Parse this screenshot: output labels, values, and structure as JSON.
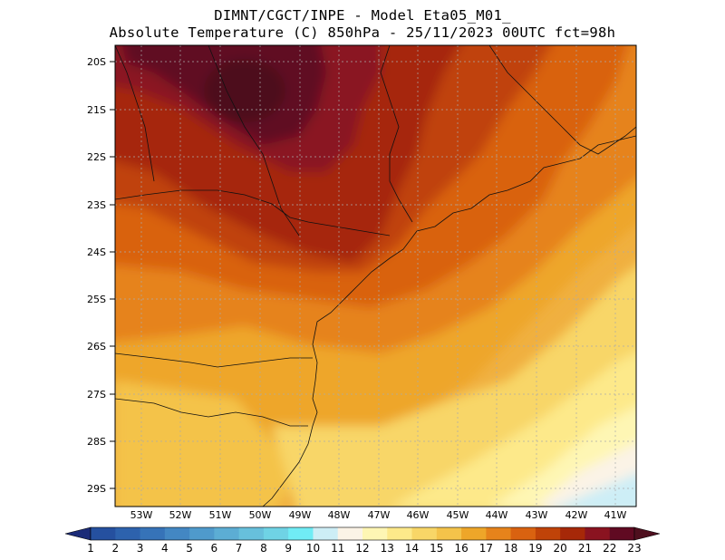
{
  "title": {
    "line1": "DIMNT/CGCT/INPE -  Model Eta05_M01_",
    "line2": "Absolute Temperature (C) 850hPa -  25/11/2023 00UTC fct=98h"
  },
  "axes": {
    "lat_labels": [
      "20S",
      "21S",
      "22S",
      "23S",
      "24S",
      "25S",
      "26S",
      "27S",
      "28S",
      "29S"
    ],
    "lon_labels": [
      "53W",
      "52W",
      "51W",
      "50W",
      "49W",
      "48W",
      "47W",
      "46W",
      "45W",
      "44W",
      "43W",
      "42W",
      "41W"
    ]
  },
  "colorbar": {
    "labels": [
      "1",
      "2",
      "3",
      "4",
      "5",
      "6",
      "7",
      "8",
      "9",
      "10",
      "11",
      "12",
      "13",
      "14",
      "15",
      "16",
      "17",
      "18",
      "19",
      "20",
      "21",
      "22",
      "23"
    ],
    "colors": [
      "#1f3c8c",
      "#25509f",
      "#2d62ad",
      "#3673b8",
      "#4387c3",
      "#4f9acc",
      "#5cadd4",
      "#67c0dc",
      "#6fd3e5",
      "#70ecf5",
      "#cdeef6",
      "#fbf3e6",
      "#fef6b4",
      "#fde98a",
      "#f8d667",
      "#f4c34a",
      "#eea629",
      "#e6831b",
      "#d96210",
      "#c04308",
      "#a62808",
      "#8a1320",
      "#600a22"
    ],
    "under_color": "#1b2b78",
    "over_color": "#4e0f1e"
  }
}
